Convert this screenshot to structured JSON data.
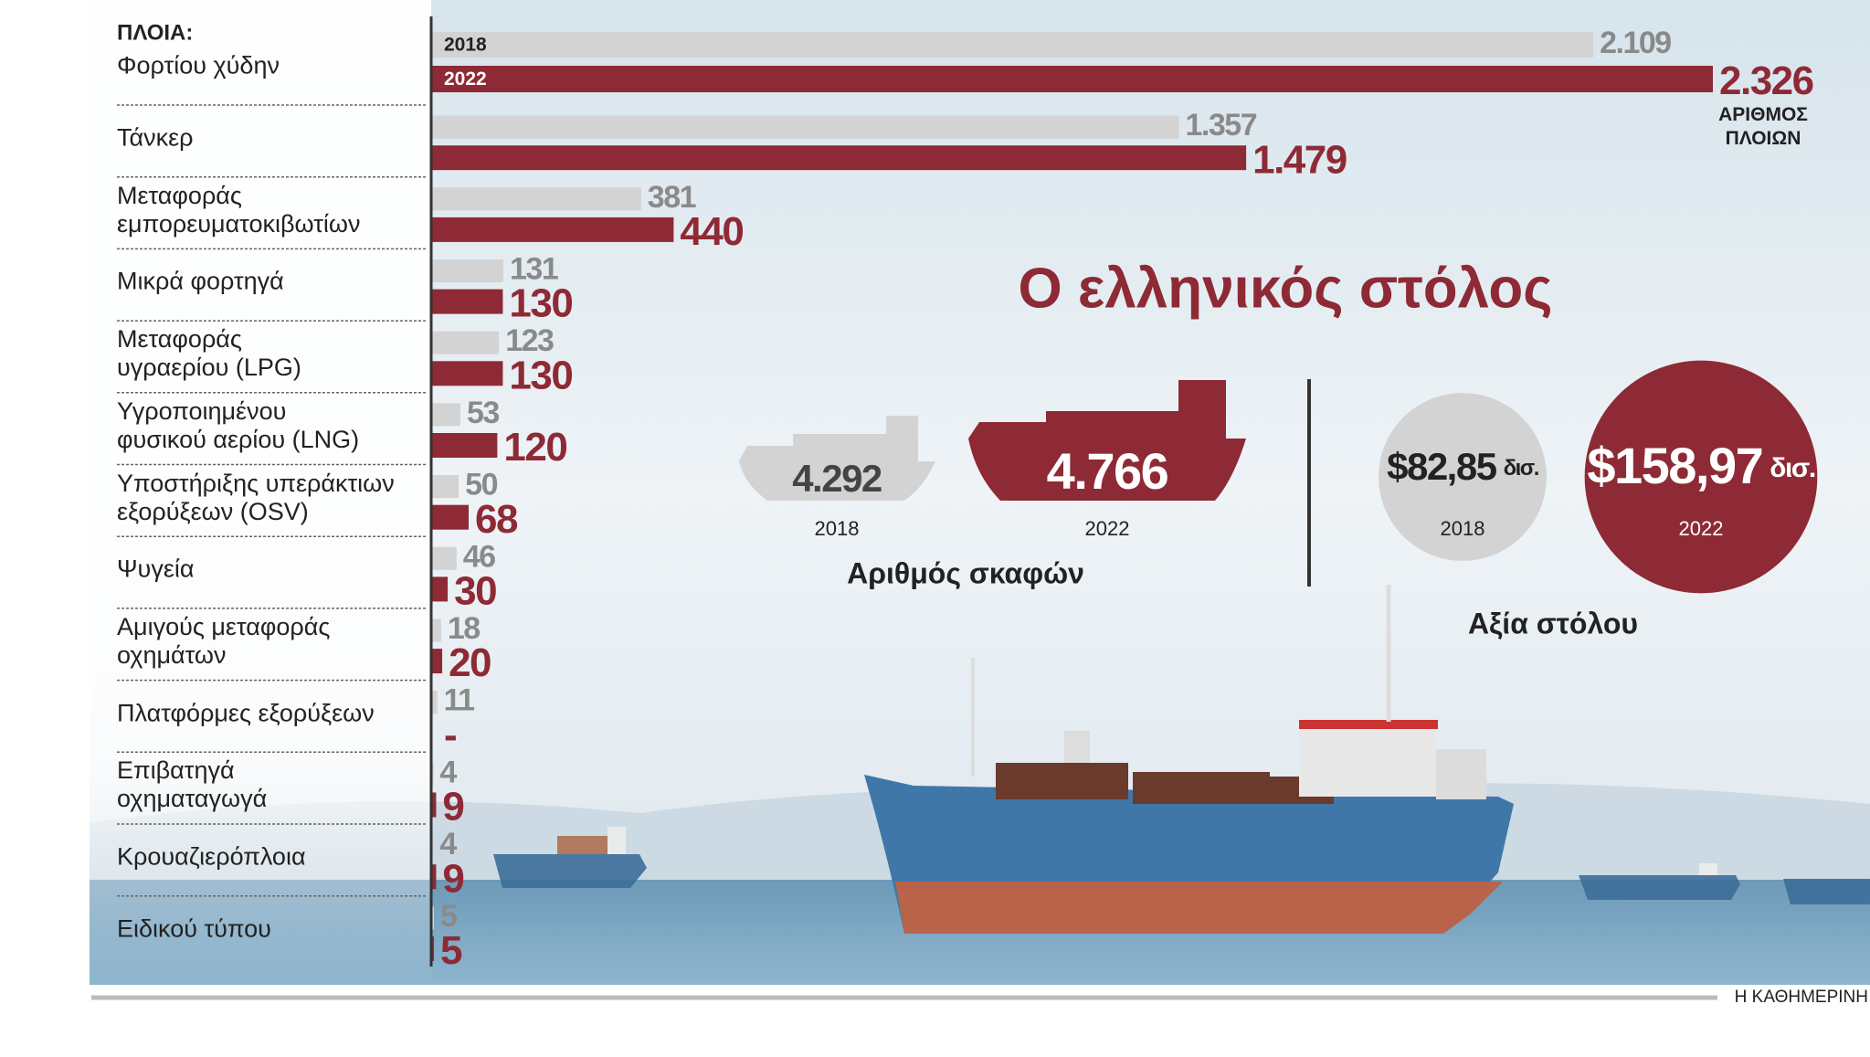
{
  "chart_data": {
    "type": "bar",
    "title": "Ο ελληνικός στόλος",
    "header": "ΠΛΟΙΑ:",
    "annotation": "ΑΡΙΘΜΟΣ\nΠΛΟΙΩΝ",
    "categories": [
      "Φορτίου χύδην",
      "Τάνκερ",
      "Μεταφοράς\nεμπορευματοκιβωτίων",
      "Μικρά φορτηγά",
      "Μεταφοράς\nυγραερίου (LPG)",
      "Υγροποιημένου\nφυσικού αερίου (LNG)",
      "Υποστήριξης υπεράκτιων\nεξορύξεων (OSV)",
      "Ψυγεία",
      "Αμιγούς μεταφοράς\nοχημάτων",
      "Πλατφόρμες εξορύξεων",
      "Επιβατηγά\nοχηματαγωγά",
      "Κρουαζιερόπλοια",
      "Ειδικού τύπου"
    ],
    "series": [
      {
        "name": "2018",
        "color": "#d3d3d3",
        "values": [
          2109,
          1357,
          381,
          131,
          123,
          53,
          50,
          46,
          18,
          11,
          4,
          4,
          5
        ],
        "value_labels": [
          "2.109",
          "1.357",
          "381",
          "131",
          "123",
          "53",
          "50",
          "46",
          "18",
          "11",
          "4",
          "4",
          "5"
        ]
      },
      {
        "name": "2022",
        "color": "#8e2a35",
        "values": [
          2326,
          1479,
          440,
          130,
          130,
          120,
          68,
          30,
          20,
          null,
          9,
          9,
          5
        ],
        "value_labels": [
          "2.326",
          "1.479",
          "440",
          "130",
          "130",
          "120",
          "68",
          "30",
          "20",
          "-",
          "9",
          "9",
          "5"
        ]
      }
    ]
  },
  "fleet_count": {
    "label": "Αριθμός σκαφών",
    "years": [
      "2018",
      "2022"
    ],
    "values": [
      4292,
      4766
    ],
    "value_labels": [
      "4.292",
      "4.766"
    ]
  },
  "fleet_value": {
    "label": "Αξία στόλου",
    "years": [
      "2018",
      "2022"
    ],
    "values": [
      82.85,
      158.97
    ],
    "value_labels": [
      "$82,85",
      "$158,97"
    ],
    "unit": "δισ."
  },
  "source": "Η ΚΑΘΗΜΕΡΙΝΗ"
}
